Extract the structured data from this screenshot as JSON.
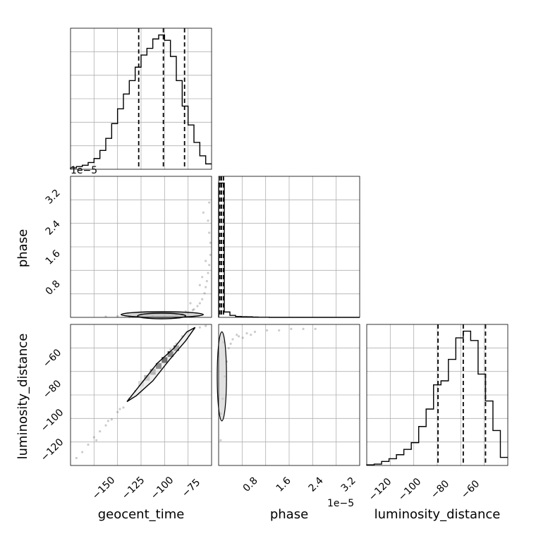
{
  "chart_data": [
    {
      "panel": "geocent_time-hist",
      "type": "histogram",
      "xlim": [
        -170,
        -50
      ],
      "ylim": [
        0,
        1.05
      ],
      "quantiles": [
        -112,
        -91,
        -73
      ],
      "bin_edges": [
        -170,
        -165,
        -160,
        -155,
        -150,
        -145,
        -140,
        -135,
        -130,
        -125,
        -120,
        -115,
        -110,
        -105,
        -100,
        -95,
        -90,
        -85,
        -80,
        -75,
        -70,
        -65,
        -60,
        -55,
        -50
      ],
      "counts": [
        0.01,
        0.02,
        0.03,
        0.05,
        0.08,
        0.14,
        0.23,
        0.34,
        0.45,
        0.56,
        0.66,
        0.76,
        0.85,
        0.9,
        0.97,
        1.0,
        0.96,
        0.84,
        0.66,
        0.47,
        0.33,
        0.2,
        0.1,
        0.04
      ]
    },
    {
      "panel": "phase-hist",
      "type": "histogram",
      "xlim": [
        0,
        3.5
      ],
      "ylim": [
        0,
        1.05
      ],
      "quantiles": [
        0.03,
        0.07,
        0.12
      ],
      "bin_edges": [
        0,
        0.14,
        0.28,
        0.42,
        0.56,
        0.7,
        0.84,
        0.98,
        1.12,
        1.26,
        1.4,
        1.54,
        1.68,
        1.82,
        1.96,
        2.1,
        2.24,
        2.38,
        2.52,
        2.66,
        2.8,
        2.94,
        3.08,
        3.22,
        3.36,
        3.5
      ],
      "counts": [
        1.0,
        0.04,
        0.015,
        0.007,
        0.005,
        0.004,
        0.002,
        0.001,
        0.001,
        0,
        0,
        0,
        0,
        0,
        0,
        0,
        0,
        0,
        0,
        0,
        0,
        0,
        0,
        0,
        0
      ]
    },
    {
      "panel": "luminosity_distance-hist",
      "type": "histogram",
      "xlim": [
        -135,
        -40
      ],
      "ylim": [
        0,
        1.05
      ],
      "quantiles": [
        -87,
        -70,
        -55
      ],
      "bin_edges": [
        -135,
        -130,
        -125,
        -120,
        -115,
        -110,
        -105,
        -100,
        -95,
        -90,
        -85,
        -80,
        -75,
        -70,
        -65,
        -60,
        -55,
        -50,
        -45,
        -40
      ],
      "counts": [
        0.005,
        0.01,
        0.03,
        0.05,
        0.08,
        0.12,
        0.17,
        0.29,
        0.42,
        0.6,
        0.63,
        0.79,
        0.95,
        1.0,
        0.93,
        0.68,
        0.48,
        0.26,
        0.06
      ]
    },
    {
      "panel": "phase-vs-geocent_time",
      "type": "scatter",
      "xlim": [
        -170,
        -50
      ],
      "ylim": [
        0,
        3.5
      ],
      "points": [
        [
          -140,
          0.02
        ],
        [
          -130,
          0.03
        ],
        [
          -120,
          0.01
        ],
        [
          -110,
          0.05
        ],
        [
          -100,
          0.04
        ],
        [
          -90,
          0.02
        ],
        [
          -80,
          0.06
        ],
        [
          -75,
          0.08
        ],
        [
          -70,
          0.12
        ],
        [
          -66,
          0.18
        ],
        [
          -62,
          0.28
        ],
        [
          -60,
          0.35
        ],
        [
          -58,
          0.45
        ],
        [
          -56,
          0.6
        ],
        [
          -55,
          0.75
        ],
        [
          -54,
          0.9
        ],
        [
          -53,
          1.1
        ],
        [
          -52,
          1.3
        ],
        [
          -51,
          1.55
        ],
        [
          -51,
          1.85
        ],
        [
          -52,
          2.1
        ],
        [
          -53,
          2.4
        ],
        [
          -57,
          2.6
        ],
        [
          -65,
          0.2
        ],
        [
          -68,
          0.35
        ],
        [
          -72,
          0.15
        ],
        [
          -60,
          0.8
        ],
        [
          -58,
          1.0
        ],
        [
          -55,
          1.4
        ],
        [
          -52,
          2.85
        ]
      ],
      "contours": [
        [
          -127,
          -57,
          0,
          0.14
        ],
        [
          -113,
          -72,
          0,
          0.07
        ]
      ]
    },
    {
      "panel": "luminosity_distance-vs-geocent_time",
      "type": "scatter",
      "xlim": [
        -170,
        -50
      ],
      "ylim": [
        -135,
        -40
      ],
      "points": [
        [
          -165,
          -130
        ],
        [
          -160,
          -126
        ],
        [
          -155,
          -121
        ],
        [
          -150,
          -116
        ],
        [
          -145,
          -112
        ],
        [
          -140,
          -108
        ],
        [
          -135,
          -104
        ],
        [
          -130,
          -99
        ],
        [
          -125,
          -96
        ],
        [
          -120,
          -90
        ],
        [
          -115,
          -85
        ],
        [
          -110,
          -80
        ],
        [
          -105,
          -76
        ],
        [
          -100,
          -70
        ],
        [
          -95,
          -66
        ],
        [
          -90,
          -62
        ],
        [
          -85,
          -57
        ],
        [
          -80,
          -53
        ],
        [
          -75,
          -48
        ],
        [
          -70,
          -45
        ],
        [
          -65,
          -43
        ],
        [
          -60,
          -42
        ],
        [
          -55,
          -41
        ],
        [
          -148,
          -118
        ],
        [
          -138,
          -105
        ],
        [
          -128,
          -97
        ],
        [
          -118,
          -89
        ],
        [
          -108,
          -78
        ]
      ],
      "contours": [
        [
          -122,
          -92
        ],
        [
          -110,
          -80
        ],
        [
          -96,
          -66
        ],
        [
          -82,
          -56
        ],
        [
          -71,
          -45
        ],
        [
          -64,
          -42
        ],
        [
          -72,
          -51
        ],
        [
          -86,
          -64
        ],
        [
          -100,
          -78
        ],
        [
          -114,
          -88
        ],
        [
          -122,
          -92
        ]
      ],
      "heat_cells": [
        [
          -100,
          -72,
          0.45
        ],
        [
          -95,
          -68,
          0.75
        ],
        [
          -90,
          -64,
          1.0
        ],
        [
          -85,
          -60,
          0.8
        ],
        [
          -80,
          -56,
          0.55
        ],
        [
          -105,
          -76,
          0.3
        ],
        [
          -110,
          -80,
          0.15
        ]
      ]
    },
    {
      "panel": "luminosity_distance-vs-phase",
      "type": "scatter",
      "xlim": [
        0,
        3.5
      ],
      "ylim": [
        -135,
        -40
      ],
      "points": [
        [
          0.05,
          -118
        ],
        [
          0.06,
          -100
        ],
        [
          0.1,
          -90
        ],
        [
          0.15,
          -75
        ],
        [
          0.2,
          -65
        ],
        [
          0.25,
          -56
        ],
        [
          0.35,
          -50
        ],
        [
          0.5,
          -48
        ],
        [
          0.7,
          -46
        ],
        [
          0.9,
          -45
        ],
        [
          1.2,
          -44
        ],
        [
          1.5,
          -44
        ],
        [
          1.8,
          -43
        ],
        [
          2.1,
          -43
        ],
        [
          2.4,
          -43
        ],
        [
          0.12,
          -52
        ],
        [
          0.3,
          -53
        ],
        [
          0.45,
          -47
        ],
        [
          0.6,
          -49
        ],
        [
          0.8,
          -47
        ]
      ],
      "contours": [
        [
          0,
          0.16,
          -105,
          -45
        ]
      ]
    }
  ],
  "axes": {
    "geocent_time_label": "geocent_time",
    "phase_label": "phase",
    "luminosity_distance_label": "luminosity_distance",
    "offset_top": "1e−5",
    "offset_bottom": "1e−5",
    "ticks_time": [
      "−150",
      "−125",
      "−100",
      "−75"
    ],
    "ticks_phase": [
      "0.8",
      "1.6",
      "2.4",
      "3.2"
    ],
    "ticks_dist_y": [
      "−60",
      "−80",
      "−100",
      "−120"
    ],
    "ticks_dist_x": [
      "−120",
      "−100",
      "−80",
      "−60"
    ]
  }
}
